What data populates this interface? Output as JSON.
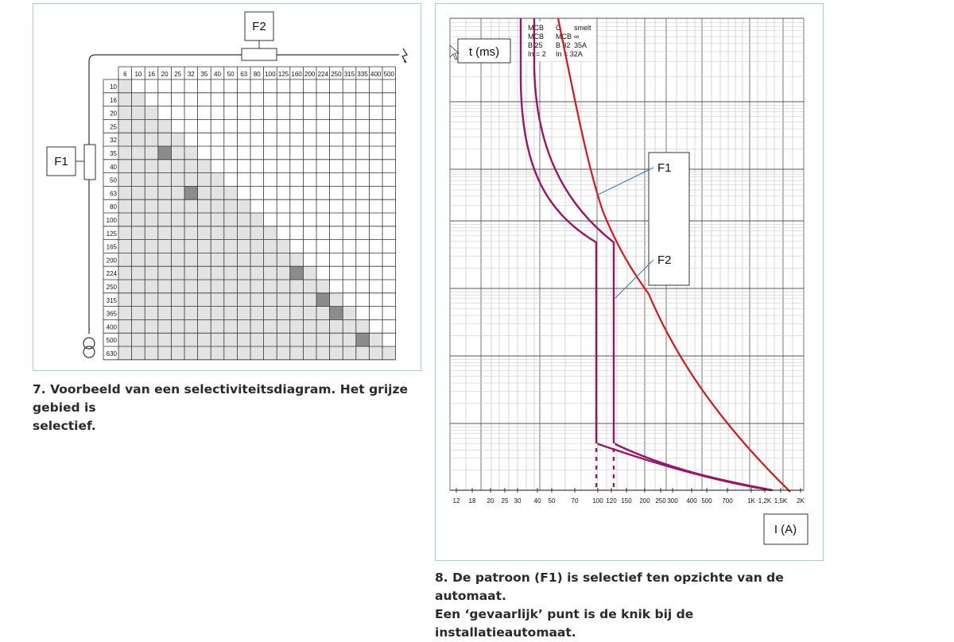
{
  "fig7": {
    "f1_label": "F1",
    "f2_label": "F2",
    "column_headers": [
      "6",
      "10",
      "16",
      "20",
      "25",
      "32",
      "35",
      "40",
      "50",
      "63",
      "80",
      "100",
      "125",
      "160",
      "200",
      "224",
      "250",
      "315",
      "335",
      "400",
      "500"
    ],
    "row_headers": [
      "10",
      "16",
      "20",
      "25",
      "32",
      "35",
      "40",
      "50",
      "63",
      "80",
      "100",
      "125",
      "165",
      "200",
      "224",
      "250",
      "315",
      "365",
      "400",
      "500",
      "630"
    ],
    "caption_line1": "7. Voorbeeld van een selectiviteitsdiagram. Het grijze gebied is",
    "caption_line2": "selectief.",
    "colors": {
      "selective": "#e3e3e3",
      "dark": "#8c8c8c",
      "grid": "#333333"
    }
  },
  "fig8": {
    "t_label": "t (ms)",
    "i_label": "I (A)",
    "f1_label": "F1",
    "f2_label": "F2",
    "info_rows": [
      [
        "MCB",
        "C",
        "smelt"
      ],
      [
        "MCB",
        "MCB",
        "∞"
      ],
      [
        "B 25",
        "B 32",
        "35A"
      ],
      [
        "In = 2",
        "In = 32A",
        ""
      ]
    ],
    "x_ticks": [
      "12",
      "18",
      "20",
      "25",
      "30",
      "40",
      "50",
      "70",
      "100",
      "120",
      "150",
      "200",
      "250",
      "300",
      "400",
      "500",
      "700",
      "1K",
      "1,2K",
      "1,5K",
      "2K"
    ],
    "caption_line1": "8. De patroon (F1) is selectief ten opzichte van de automaat.",
    "caption_line2": "Een ‘gevaarlijk’ punt is de knik bij de installatieautomaat.",
    "colors": {
      "fuse_curve": "#d9151b",
      "mcb_curves": "#9c1466",
      "callout": "#2a7ab8"
    }
  }
}
